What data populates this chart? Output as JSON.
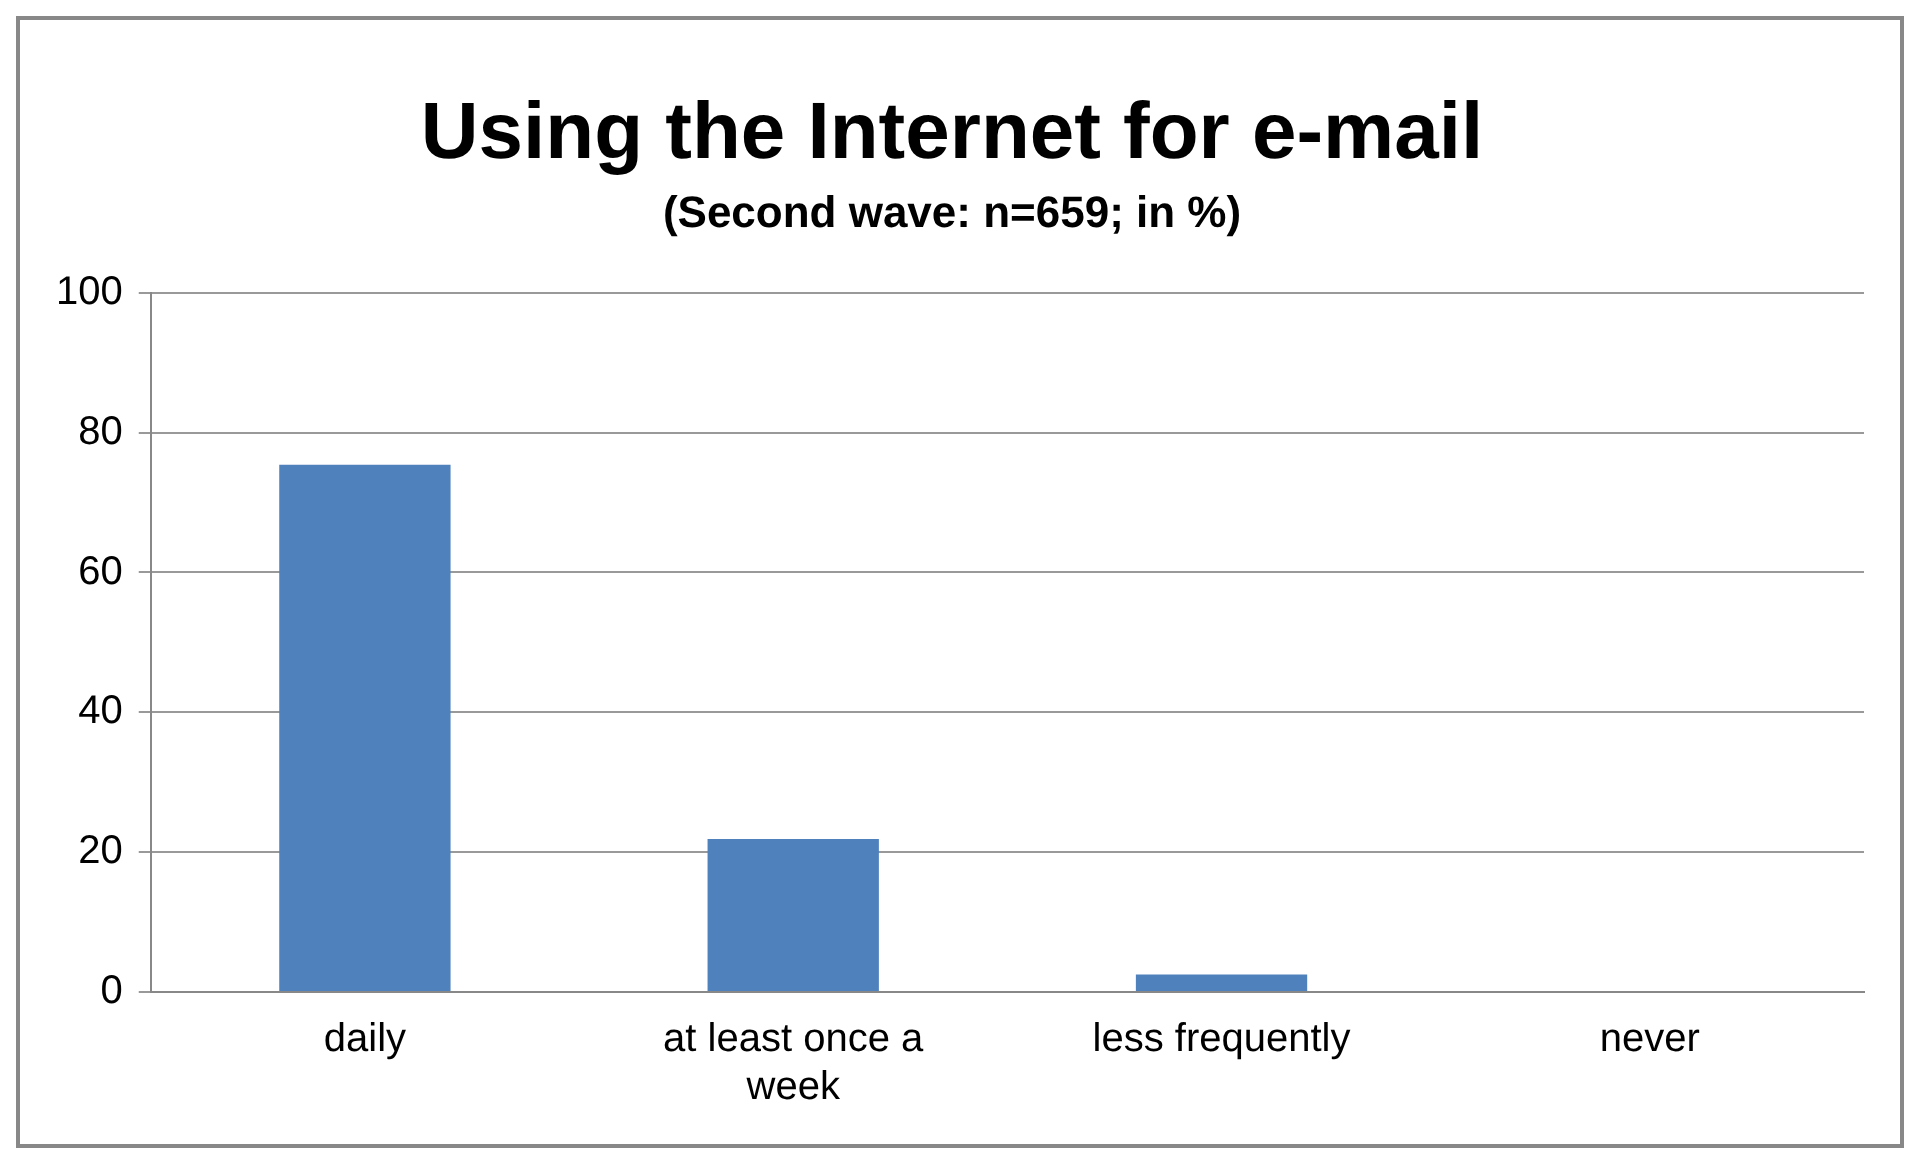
{
  "chart_data": {
    "type": "bar",
    "title": "Using the Internet for e-mail",
    "subtitle": "(Second wave: n=659; in %)",
    "categories": [
      "daily",
      "at least once a week",
      "less frequently",
      "never"
    ],
    "values": [
      75.4,
      21.9,
      2.5,
      0
    ],
    "color": "#4f81bd",
    "ylim": [
      0,
      100
    ],
    "yticks": [
      0,
      20,
      40,
      60,
      80,
      100
    ],
    "grid": "y",
    "legend": false
  }
}
